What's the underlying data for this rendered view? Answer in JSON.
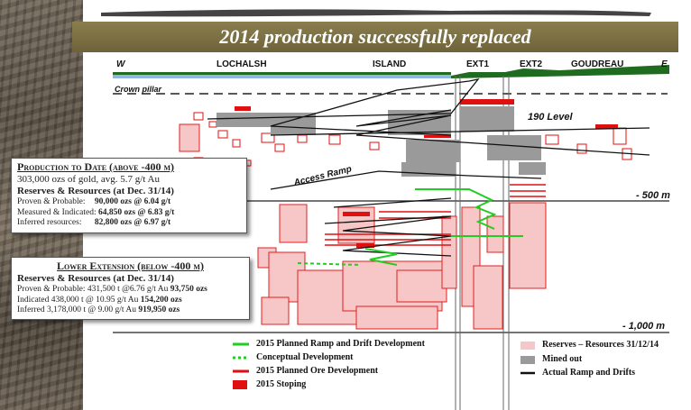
{
  "title": "2014 production successfully replaced",
  "section": {
    "west": "W",
    "east": "E",
    "zones": [
      "LOCHALSH",
      "ISLAND",
      "EXT1",
      "EXT2",
      "GOUDREAU"
    ],
    "crown_pillar": "Crown pillar",
    "level_190": "190 Level",
    "access_ramp": "Access Ramp",
    "depth_500": "- 500 m",
    "depth_1000": "- 1,000 m"
  },
  "production_box": {
    "heading": "Production to Date (above -400 m)",
    "line1": "303,000 ozs of gold, avg. 5.7 g/t Au",
    "subheading": "Reserves & Resources (at Dec. 31/14)",
    "pp_label": "Proven & Probable:",
    "pp_value": "90,000 ozs @ 6.04 g/t",
    "mi_label": "Measured & Indicated:",
    "mi_value": "64,850 ozs @ 6.83 g/t",
    "inf_label": "Inferred resources:",
    "inf_value": "82,800 ozs @ 6.97 g/t"
  },
  "lower_box": {
    "heading": "Lower Extension (below -400 m)",
    "subheading": "Reserves & Resources (at Dec. 31/14)",
    "pp_text": "Proven & Probable: 431,500 t @6.76 g/t Au",
    "pp_ozs": "93,750 ozs",
    "ind_text": "Indicated  438,000 t @ 10.95 g/t Au",
    "ind_ozs": "154,200 ozs",
    "inf_text": "Inferred 3,178,000 t @ 9.00 g/t Au",
    "inf_ozs": "919,950 ozs"
  },
  "legend": {
    "planned_ramp": "2015 Planned Ramp and Drift Development",
    "conceptual": "Conceptual Development",
    "planned_ore": "2015 Planned Ore Development",
    "stoping": "2015 Stoping",
    "reserves": "Reserves – Resources 31/12/14",
    "mined_out": "Mined out",
    "actual_ramp": "Actual Ramp and Drifts"
  },
  "colors": {
    "banner": "#7d7246",
    "planned_ramp": "#22cc22",
    "planned_ore": "#e01010",
    "stoping": "#e01010",
    "reserves": "#f7c6c6",
    "mined_out": "#9a9a9a",
    "actual_ramp": "#111111",
    "surface_green": "#1f6b1f",
    "water_blue": "#8fb6e0"
  }
}
